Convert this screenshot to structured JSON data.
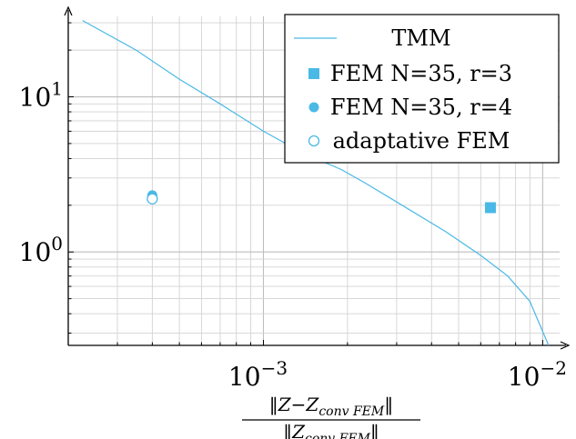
{
  "chart_data": {
    "type": "scatter",
    "x_scale": "log",
    "y_scale": "log",
    "xlim": [
      0.0002,
      0.0115
    ],
    "ylim": [
      0.25,
      33
    ],
    "grid": true,
    "legend_position": "top-right",
    "xlabel": "‖Z−Z_conv FEM‖ / ‖Z_conv FEM‖",
    "xlabel_parts": {
      "numerator_prefix": "‖Z−Z",
      "numerator_sub": "conv FEM",
      "numerator_suffix": "‖",
      "denominator_prefix": "‖Z",
      "denominator_sub": "conv FEM",
      "denominator_suffix": "‖"
    },
    "x_ticks": [
      {
        "value": 0.001,
        "base": "10",
        "exp": "−3"
      },
      {
        "value": 0.01,
        "base": "10",
        "exp": "−2"
      }
    ],
    "y_ticks": [
      {
        "value": 1,
        "base": "10",
        "exp": "0"
      },
      {
        "value": 10,
        "base": "10",
        "exp": "1"
      }
    ],
    "colors": {
      "series": "#4bb9e6"
    },
    "series": [
      {
        "name": "TMM",
        "kind": "line",
        "points": [
          [
            0.000225,
            31
          ],
          [
            0.00035,
            20
          ],
          [
            0.0005,
            13
          ],
          [
            0.0007,
            9
          ],
          [
            0.001,
            6
          ],
          [
            0.0014,
            4.3
          ],
          [
            0.0019,
            3.4
          ],
          [
            0.0023,
            2.8
          ],
          [
            0.003,
            2.1
          ],
          [
            0.0045,
            1.35
          ],
          [
            0.006,
            0.95
          ],
          [
            0.0075,
            0.7
          ],
          [
            0.009,
            0.48
          ],
          [
            0.0105,
            0.25
          ]
        ]
      },
      {
        "name": "FEM N=35, r=3",
        "kind": "marker",
        "marker": "square",
        "points": [
          [
            0.0065,
            1.93
          ]
        ]
      },
      {
        "name": "FEM N=35, r=4",
        "kind": "marker",
        "marker": "circle",
        "points": [
          [
            0.0004,
            2.32
          ]
        ]
      },
      {
        "name": "adaptative FEM",
        "kind": "marker",
        "marker": "open-circle",
        "points": [
          [
            0.0004,
            2.2
          ]
        ]
      }
    ]
  }
}
